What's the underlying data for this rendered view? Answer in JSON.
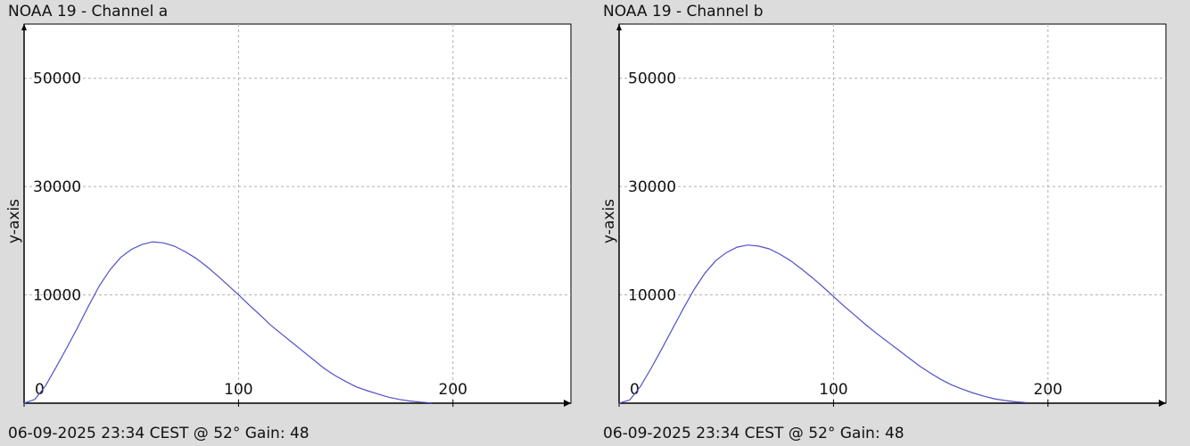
{
  "chart_data": [
    {
      "type": "line",
      "title": "NOAA 19 - Channel a",
      "ylabel": "y-axis",
      "xlabel": "",
      "footer": "06-09-2025 23:34 CEST @ 52° Gain: 48",
      "x_ticks": [
        "0",
        "100",
        "200"
      ],
      "y_ticks": [
        "10000",
        "30000",
        "50000"
      ],
      "xlim": [
        0,
        255
      ],
      "ylim": [
        -10000,
        60000
      ],
      "grid": true,
      "colors": {
        "line": "#5050c8",
        "grid": "#b0b0b0",
        "axis": "#000000",
        "plot_bg": "#ffffff",
        "page_bg": "#dcdcdc"
      },
      "series": [
        {
          "x": [
            0,
            5,
            10,
            15,
            20,
            25,
            30,
            35,
            40,
            45,
            50,
            55,
            60,
            65,
            70,
            75,
            80,
            85,
            90,
            95,
            100,
            105,
            110,
            115,
            120,
            125,
            130,
            135,
            140,
            145,
            150,
            155,
            160,
            165,
            170,
            175,
            180,
            185,
            190
          ],
          "values": [
            -10000,
            -9300,
            -6800,
            -3300,
            300,
            4000,
            7900,
            11600,
            14600,
            16900,
            18400,
            19300,
            19800,
            19600,
            19000,
            18000,
            16800,
            15300,
            13600,
            11800,
            10000,
            8100,
            6300,
            4400,
            2800,
            1200,
            -400,
            -2000,
            -3600,
            -4900,
            -6000,
            -7000,
            -7700,
            -8300,
            -8900,
            -9300,
            -9600,
            -9800,
            -9950
          ]
        }
      ]
    },
    {
      "type": "line",
      "title": "NOAA 19 - Channel b",
      "ylabel": "y-axis",
      "xlabel": "",
      "footer": "06-09-2025 23:34 CEST @ 52° Gain: 48",
      "x_ticks": [
        "0",
        "100",
        "200"
      ],
      "y_ticks": [
        "10000",
        "30000",
        "50000"
      ],
      "xlim": [
        0,
        255
      ],
      "ylim": [
        -10000,
        60000
      ],
      "grid": true,
      "colors": {
        "line": "#5050c8",
        "grid": "#b0b0b0",
        "axis": "#000000",
        "plot_bg": "#ffffff",
        "page_bg": "#dcdcdc"
      },
      "series": [
        {
          "x": [
            0,
            5,
            10,
            15,
            20,
            25,
            30,
            35,
            40,
            45,
            50,
            55,
            60,
            65,
            70,
            75,
            80,
            85,
            90,
            95,
            100,
            105,
            110,
            115,
            120,
            125,
            130,
            135,
            140,
            145,
            150,
            155,
            160,
            165,
            170,
            175,
            180,
            185,
            190
          ],
          "values": [
            -10000,
            -9400,
            -6900,
            -3500,
            100,
            3800,
            7500,
            11000,
            14000,
            16300,
            17800,
            18800,
            19200,
            19000,
            18500,
            17500,
            16300,
            14800,
            13200,
            11500,
            9700,
            7900,
            6200,
            4500,
            2900,
            1400,
            -100,
            -1600,
            -3100,
            -4400,
            -5600,
            -6600,
            -7400,
            -8100,
            -8700,
            -9200,
            -9500,
            -9750,
            -9900
          ]
        }
      ]
    }
  ]
}
